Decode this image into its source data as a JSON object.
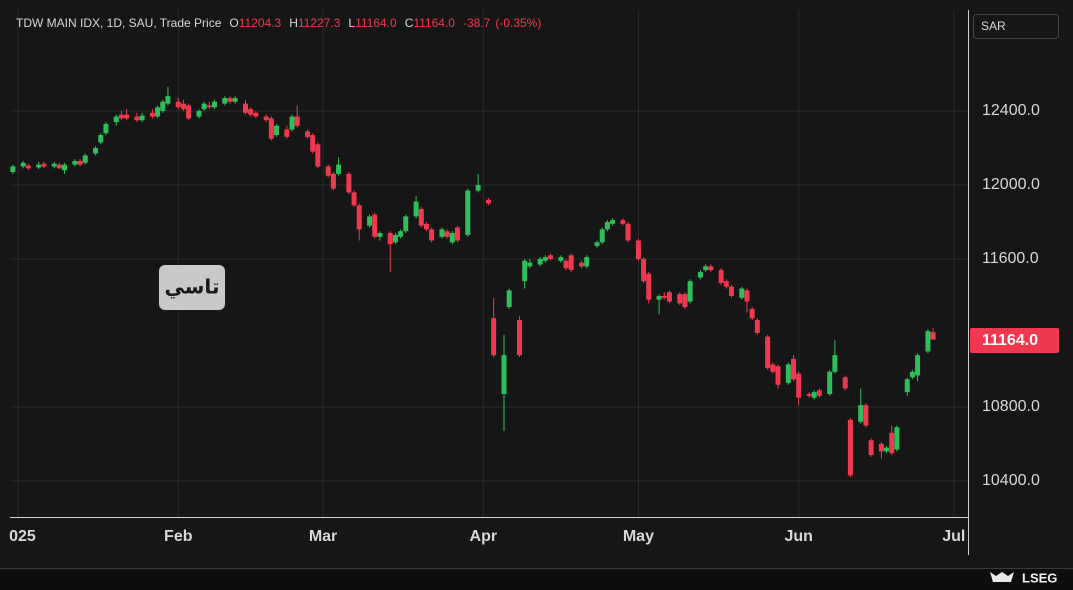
{
  "header": {
    "instrument": "TDW MAIN IDX, 1D, SAU, Trade Price",
    "o_label": "O",
    "open": "11204.3",
    "h_label": "H",
    "high": "11227.3",
    "l_label": "L",
    "low": "11164.0",
    "c_label": "C",
    "close": "11164.0",
    "change": "-38.7",
    "change_pct": "(-0.35%)",
    "currency": "SAR",
    "last_price_label": "11164.0",
    "annotation": "تاسي",
    "footer_brand": "LSEG"
  },
  "chart_data": {
    "type": "candlestick",
    "up_color": "#2fbf5a",
    "down_color": "#f0384f",
    "grid": true,
    "xlim": [
      -1.55,
      183.75
    ],
    "ylim": [
      10205,
      12946
    ],
    "xticks": [
      {
        "value": 0,
        "label": "2025"
      },
      {
        "value": 31,
        "label": "Feb"
      },
      {
        "value": 59,
        "label": "Mar"
      },
      {
        "value": 90,
        "label": "Apr"
      },
      {
        "value": 120,
        "label": "May"
      },
      {
        "value": 151,
        "label": "Jun"
      },
      {
        "value": 181,
        "label": "Jul"
      }
    ],
    "yticks": [
      {
        "value": 10400,
        "label": "10400.0"
      },
      {
        "value": 10800,
        "label": "10800.0"
      },
      {
        "value": 11600,
        "label": "11600.0"
      },
      {
        "value": 12000,
        "label": "12000.0"
      },
      {
        "value": 12400,
        "label": "12400.0"
      }
    ],
    "x": [
      -1,
      1,
      2,
      4,
      5,
      7,
      8,
      9,
      11,
      12,
      13,
      15,
      16,
      17,
      19,
      20,
      21,
      23,
      24,
      26,
      27,
      28,
      29,
      31,
      32,
      33,
      35,
      36,
      37,
      38,
      40,
      41,
      42,
      44,
      45,
      46,
      48,
      49,
      50,
      52,
      53,
      54,
      56,
      57,
      58,
      60,
      61,
      62,
      64,
      65,
      66,
      68,
      69,
      70,
      72,
      73,
      74,
      75,
      77,
      78,
      79,
      80,
      82,
      83,
      84,
      85,
      87,
      89,
      91,
      92,
      94,
      95,
      97,
      98,
      99,
      101,
      102,
      103,
      105,
      106,
      107,
      109,
      110,
      112,
      113,
      114,
      115,
      117,
      118,
      120,
      121,
      122,
      124,
      125,
      126,
      128,
      129,
      130,
      132,
      133,
      134,
      136,
      137,
      138,
      140,
      141,
      142,
      143,
      145,
      146,
      147,
      149,
      150,
      151,
      153,
      154,
      155,
      157,
      158,
      160,
      161,
      163,
      164,
      165,
      167,
      168,
      169,
      170,
      172,
      173,
      174,
      176,
      177
    ],
    "open": [
      12070,
      12100,
      12105,
      12095,
      12115,
      12100,
      12110,
      12080,
      12110,
      12130,
      12120,
      12170,
      12230,
      12280,
      12340,
      12380,
      12380,
      12370,
      12350,
      12390,
      12370,
      12400,
      12440,
      12450,
      12440,
      12430,
      12370,
      12410,
      12430,
      12420,
      12440,
      12470,
      12450,
      12440,
      12410,
      12390,
      12370,
      12360,
      12270,
      12300,
      12300,
      12370,
      12290,
      12270,
      12220,
      12100,
      12060,
      12060,
      12060,
      11960,
      11890,
      11780,
      11840,
      11720,
      11740,
      11690,
      11720,
      11750,
      11830,
      11870,
      11790,
      11760,
      11720,
      11750,
      11690,
      11770,
      11730,
      11970,
      11920,
      11280,
      10870,
      11340,
      11270,
      11480,
      11560,
      11570,
      11590,
      11620,
      11590,
      11590,
      11620,
      11580,
      11560,
      11670,
      11690,
      11760,
      11790,
      11810,
      11790,
      11700,
      11600,
      11520,
      11380,
      11400,
      11420,
      11410,
      11410,
      11370,
      11500,
      11540,
      11560,
      11540,
      11480,
      11450,
      11390,
      11430,
      11330,
      11270,
      11180,
      11030,
      11020,
      10930,
      11060,
      10980,
      10870,
      10850,
      10890,
      10870,
      10990,
      10960,
      10730,
      10720,
      10810,
      10620,
      10600,
      10560,
      10660,
      10570,
      10880,
      10960,
      10970,
      11100,
      11204.3
    ],
    "high": [
      12110,
      12130,
      12115,
      12125,
      12125,
      12125,
      12120,
      12120,
      12140,
      12140,
      12170,
      12210,
      12280,
      12340,
      12380,
      12400,
      12410,
      12390,
      12390,
      12410,
      12430,
      12460,
      12530,
      12470,
      12460,
      12440,
      12410,
      12450,
      12450,
      12460,
      12480,
      12480,
      12480,
      12460,
      12420,
      12400,
      12380,
      12370,
      12330,
      12320,
      12380,
      12430,
      12300,
      12280,
      12230,
      12110,
      12070,
      12150,
      12070,
      11970,
      11900,
      11840,
      11850,
      11750,
      11750,
      11740,
      11760,
      11840,
      11940,
      11880,
      11800,
      11770,
      11770,
      11760,
      11750,
      11780,
      11980,
      12060,
      11930,
      11390,
      11190,
      11440,
      11290,
      11600,
      11600,
      11610,
      11620,
      11630,
      11620,
      11600,
      11630,
      11590,
      11620,
      11700,
      11770,
      11810,
      11820,
      11820,
      11800,
      11710,
      11610,
      11530,
      11410,
      11420,
      11430,
      11420,
      11420,
      11490,
      11540,
      11570,
      11570,
      11550,
      11490,
      11460,
      11450,
      11440,
      11340,
      11280,
      11190,
      11040,
      11030,
      11040,
      11080,
      10990,
      10880,
      10890,
      10900,
      11000,
      11160,
      10970,
      10740,
      10900,
      10820,
      10630,
      10610,
      10590,
      10700,
      10700,
      10960,
      11000,
      11090,
      11220,
      11227.3
    ],
    "low": [
      12060,
      12090,
      12080,
      12085,
      12090,
      12090,
      12085,
      12060,
      12100,
      12100,
      12110,
      12160,
      12220,
      12270,
      12320,
      12350,
      12350,
      12340,
      12340,
      12360,
      12360,
      12390,
      12430,
      12410,
      12400,
      12350,
      12360,
      12400,
      12410,
      12410,
      12430,
      12440,
      12440,
      12380,
      12370,
      12360,
      12340,
      12240,
      12260,
      12250,
      12290,
      12310,
      12250,
      12170,
      12090,
      12040,
      11970,
      12050,
      11950,
      11880,
      11700,
      11770,
      11710,
      11700,
      11530,
      11680,
      11710,
      11740,
      11820,
      11770,
      11750,
      11690,
      11710,
      11710,
      11680,
      11690,
      11720,
      11960,
      11890,
      11070,
      10670,
      11330,
      11070,
      11440,
      11550,
      11560,
      11580,
      11590,
      11580,
      11540,
      11530,
      11550,
      11550,
      11660,
      11680,
      11750,
      11780,
      11780,
      11690,
      11590,
      11470,
      11360,
      11300,
      11380,
      11360,
      11350,
      11330,
      11360,
      11490,
      11530,
      11530,
      11460,
      11440,
      11390,
      11380,
      11310,
      11270,
      11190,
      11000,
      10980,
      10900,
      10920,
      10940,
      10810,
      10850,
      10840,
      10850,
      10860,
      10980,
      10890,
      10420,
      10710,
      10690,
      10530,
      10520,
      10550,
      10540,
      10560,
      10860,
      10950,
      10940,
      11090,
      11164
    ],
    "close": [
      12100,
      12120,
      12090,
      12110,
      12100,
      12115,
      12090,
      12110,
      12130,
      12110,
      12160,
      12200,
      12270,
      12330,
      12370,
      12360,
      12360,
      12350,
      12375,
      12370,
      12420,
      12450,
      12480,
      12420,
      12410,
      12360,
      12400,
      12440,
      12420,
      12450,
      12470,
      12450,
      12470,
      12390,
      12380,
      12370,
      12350,
      12250,
      12320,
      12260,
      12370,
      12320,
      12260,
      12180,
      12100,
      12050,
      11980,
      12110,
      11960,
      11890,
      11760,
      11830,
      11720,
      11740,
      11680,
      11730,
      11750,
      11830,
      11910,
      11780,
      11760,
      11700,
      11760,
      11720,
      11740,
      11700,
      11970,
      12000,
      11900,
      11080,
      11080,
      11430,
      11080,
      11590,
      11580,
      11600,
      11610,
      11600,
      11610,
      11550,
      11540,
      11560,
      11610,
      11690,
      11760,
      11800,
      11810,
      11790,
      11700,
      11600,
      11480,
      11380,
      11400,
      11390,
      11370,
      11360,
      11340,
      11480,
      11530,
      11560,
      11540,
      11470,
      11450,
      11400,
      11440,
      11370,
      11280,
      11200,
      11010,
      10990,
      10920,
      11030,
      10950,
      10850,
      10860,
      10880,
      10860,
      10990,
      11080,
      10900,
      10430,
      10810,
      10700,
      10540,
      10560,
      10580,
      10550,
      10690,
      10950,
      10990,
      11080,
      11210,
      11164
    ]
  }
}
